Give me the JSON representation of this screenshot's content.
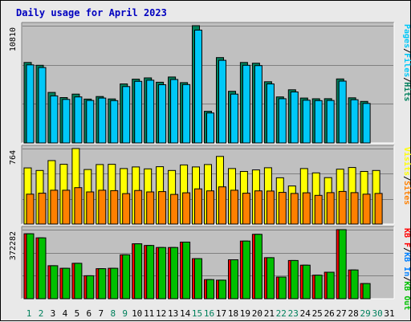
{
  "chart_data": {
    "type": "bar",
    "title": "Daily usage for April 2023",
    "categories": [
      "1",
      "2",
      "3",
      "4",
      "5",
      "6",
      "7",
      "8",
      "9",
      "10",
      "11",
      "12",
      "13",
      "14",
      "15",
      "16",
      "17",
      "18",
      "19",
      "20",
      "21",
      "22",
      "23",
      "24",
      "25",
      "26",
      "27",
      "28",
      "29",
      "30",
      "31"
    ],
    "weekend_days": [
      "1",
      "2",
      "8",
      "9",
      "15",
      "16",
      "22",
      "23",
      "29",
      "30"
    ],
    "panels": [
      {
        "id": "top",
        "max_label": "10810",
        "ymax": 10810,
        "right_labels": [
          "Pages",
          "Files",
          "Hits"
        ],
        "series": [
          {
            "name": "Hits",
            "color": "#00805c",
            "values": [
              7420,
              7160,
              4660,
              4180,
              4500,
              4040,
              4280,
              4060,
              5440,
              5880,
              6000,
              5600,
              6080,
              5560,
              10810,
              2920,
              7870,
              4760,
              7420,
              7350,
              5640,
              4240,
              4900,
              4140,
              4070,
              4080,
              5900,
              4160,
              3830,
              0,
              0
            ]
          },
          {
            "name": "Files",
            "color": "#00c8f8",
            "values": [
              7200,
              6950,
              4340,
              4010,
              4240,
              3920,
              4140,
              3900,
              5200,
              5680,
              5780,
              5370,
              5850,
              5380,
              10400,
              2760,
              7620,
              4500,
              7160,
              7130,
              5440,
              4080,
              4700,
              3940,
              3900,
              3920,
              5700,
              3980,
              3640,
              0,
              0
            ]
          },
          {
            "name": "Pages",
            "color": "#00c8f8",
            "values": [
              0,
              0,
              0,
              0,
              0,
              0,
              0,
              0,
              0,
              0,
              0,
              0,
              0,
              0,
              0,
              0,
              0,
              0,
              0,
              0,
              0,
              0,
              0,
              0,
              0,
              0,
              0,
              0,
              0,
              0,
              0
            ]
          }
        ]
      },
      {
        "id": "middle",
        "max_label": "764",
        "ymax": 764,
        "right_labels": [
          "Visits",
          "Sites"
        ],
        "series": [
          {
            "name": "Visits",
            "color": "#ffff00",
            "values": [
              568,
              542,
              642,
              605,
              764,
              552,
              602,
              605,
              562,
              578,
              558,
              580,
              542,
              598,
              578,
              602,
              684,
              562,
              532,
              548,
              570,
              468,
              385,
              562,
              518,
              470,
              555,
              572,
              532,
              542,
              0
            ]
          },
          {
            "name": "Sites",
            "color": "#ff8000",
            "values": [
              302,
              312,
              342,
              342,
              368,
              325,
              342,
              338,
              308,
              340,
              325,
              328,
              300,
              316,
              356,
              336,
              376,
              342,
              312,
              336,
              334,
              320,
              310,
              316,
              290,
              318,
              330,
              318,
              302,
              310,
              0
            ]
          }
        ]
      },
      {
        "id": "bottom",
        "max_label": "372282",
        "ymax": 372282,
        "right_labels": [
          "KB F",
          "KB In",
          "KB Out"
        ],
        "series": [
          {
            "name": "KB F",
            "color": "#ff0000",
            "values": [
              350000,
              328000,
              178000,
              164000,
              191000,
              124000,
              162000,
              164000,
              237000,
              296000,
              287000,
              276000,
              276000,
              305000,
              216000,
              103000,
              100000,
              210000,
              311000,
              347000,
              221000,
              117000,
              206000,
              181000,
              127000,
              143000,
              372282,
              155000,
              82000,
              0,
              0
            ]
          },
          {
            "name": "KB In",
            "color": "#0080ff",
            "values": [
              0,
              0,
              0,
              0,
              0,
              0,
              0,
              0,
              0,
              0,
              0,
              0,
              0,
              0,
              0,
              0,
              0,
              0,
              0,
              0,
              0,
              0,
              0,
              0,
              0,
              0,
              0,
              0,
              0,
              0,
              0
            ]
          },
          {
            "name": "KB Out",
            "color": "#00c000",
            "values": [
              350000,
              328000,
              178000,
              164000,
              191000,
              124000,
              162000,
              164000,
              237000,
              296000,
              287000,
              276000,
              276000,
              305000,
              216000,
              103000,
              100000,
              210000,
              311000,
              347000,
              221000,
              117000,
              206000,
              181000,
              127000,
              143000,
              372282,
              155000,
              82000,
              0,
              0
            ]
          }
        ]
      }
    ],
    "colors": {
      "frame_bg": "#e9e9e9",
      "plot_bg": "#c0c0c0",
      "gridline": "#808080",
      "title": "#0000c0",
      "weekday_label": "#000000",
      "weekend_label": "#00805c"
    }
  }
}
